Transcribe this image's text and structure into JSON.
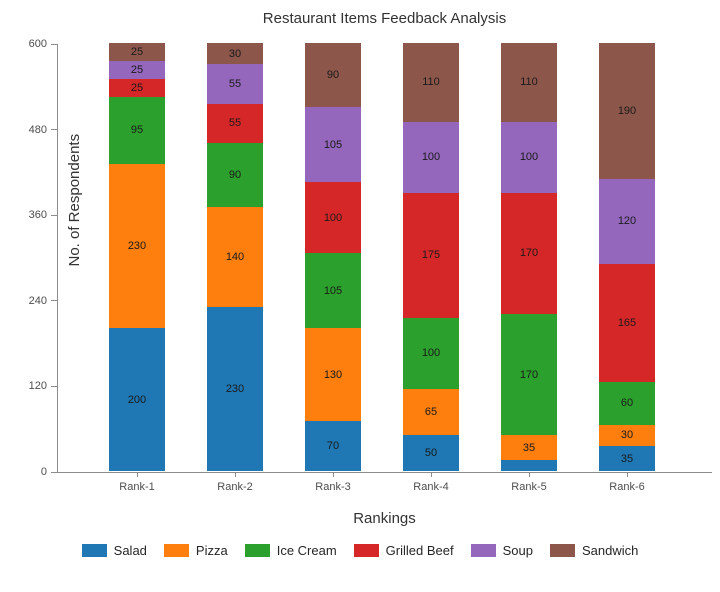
{
  "chart_data": {
    "type": "bar",
    "stacked": true,
    "title": "Restaurant Items Feedback Analysis",
    "xlabel": "Rankings",
    "ylabel": "No. of Respondents",
    "categories": [
      "Rank-1",
      "Rank-2",
      "Rank-3",
      "Rank-4",
      "Rank-5",
      "Rank-6"
    ],
    "series": [
      {
        "name": "Salad",
        "color": "#1f77b4",
        "values": [
          200,
          230,
          70,
          50,
          15,
          35
        ]
      },
      {
        "name": "Pizza",
        "color": "#ff7f0e",
        "values": [
          230,
          140,
          130,
          65,
          35,
          30
        ]
      },
      {
        "name": "Ice Cream",
        "color": "#2ca02c",
        "values": [
          95,
          90,
          105,
          100,
          170,
          60
        ]
      },
      {
        "name": "Grilled Beef",
        "color": "#d62728",
        "values": [
          25,
          55,
          100,
          175,
          170,
          165
        ]
      },
      {
        "name": "Soup",
        "color": "#9467bd",
        "values": [
          25,
          55,
          105,
          100,
          100,
          120
        ]
      },
      {
        "name": "Sandwich",
        "color": "#8c564b",
        "values": [
          25,
          30,
          90,
          110,
          110,
          190
        ]
      }
    ],
    "yticks": [
      0,
      120,
      240,
      360,
      480,
      600
    ],
    "ylim": [
      0,
      600
    ],
    "grid": false,
    "legend_position": "bottom",
    "bar_totals": [
      600,
      600,
      600,
      600,
      600,
      600
    ]
  }
}
